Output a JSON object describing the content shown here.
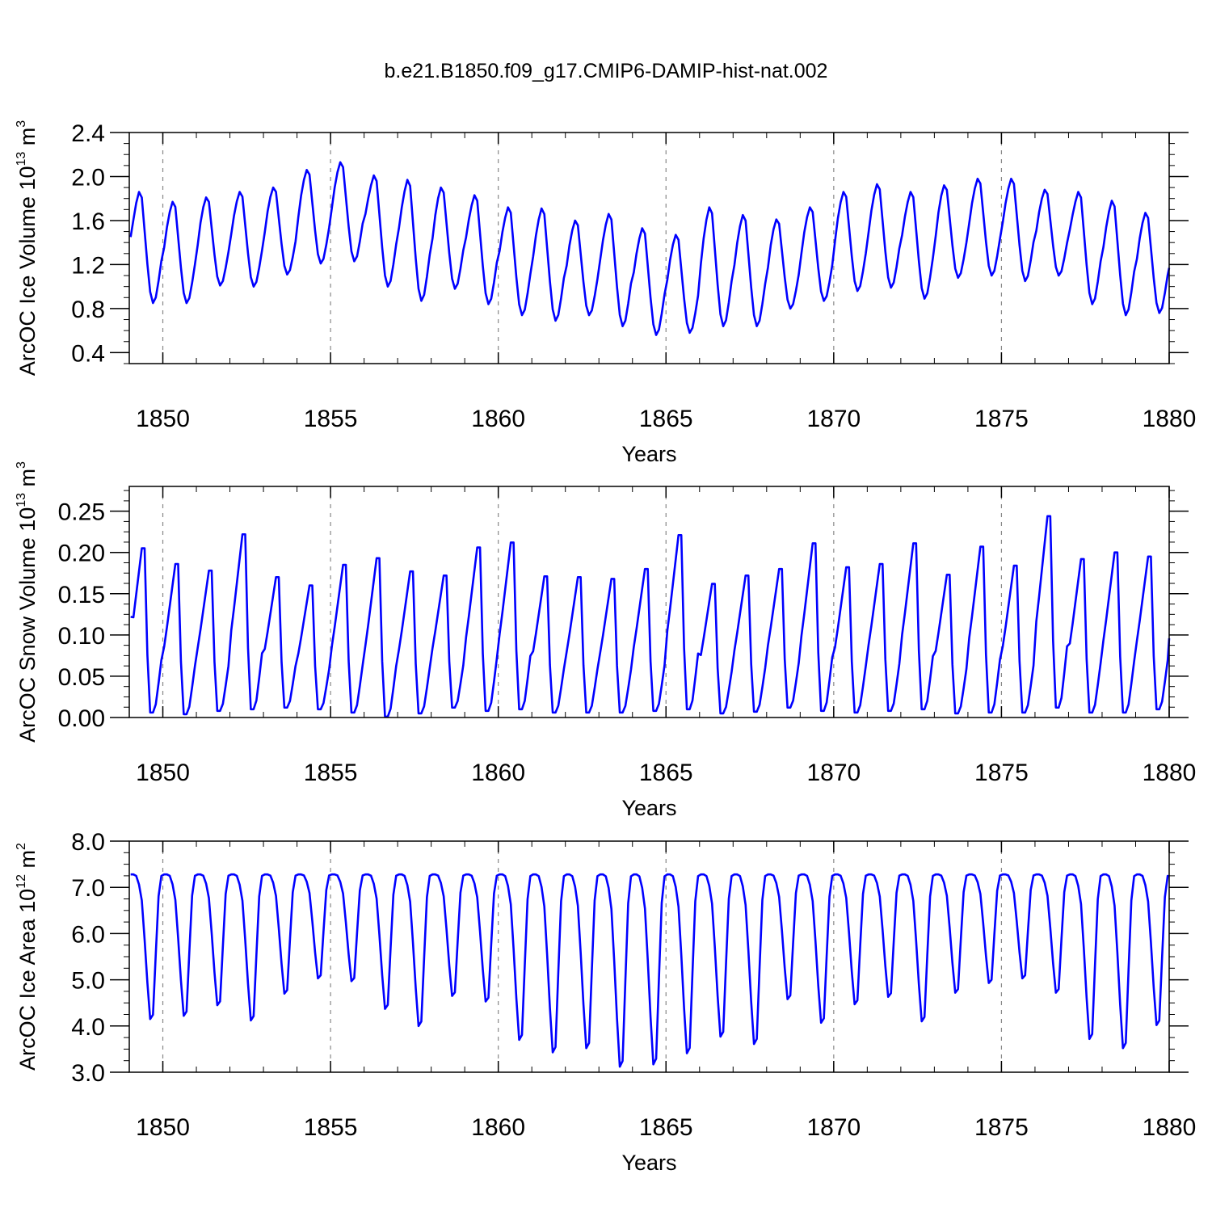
{
  "title": "b.e21.B1850.f09_g17.CMIP6-DAMIP-hist-nat.002",
  "colors": {
    "series": "#0000ff",
    "axes": "#000000",
    "grid": "#888888",
    "background": "#ffffff"
  },
  "chart_data": [
    {
      "type": "line",
      "ylabel": {
        "prefix": "ArcOC Ice Volume 10",
        "exp1": "13",
        "mid": " m",
        "exp2": "3"
      },
      "xlabel": "Years",
      "xlim": [
        1849.0,
        1880.0
      ],
      "ylim": [
        0.3,
        2.4
      ],
      "xticks": [
        1850,
        1855,
        1860,
        1865,
        1870,
        1875,
        1880
      ],
      "xtick_labels": [
        "1850",
        "1855",
        "1860",
        "1865",
        "1870",
        "1875",
        "1880"
      ],
      "yticks": [
        0.4,
        0.8,
        1.2,
        1.6,
        2.0,
        2.4
      ],
      "ytick_labels": [
        "0.4",
        "0.8",
        "1.2",
        "1.6",
        "2.0",
        "2.4"
      ],
      "grid": "vertical dashed at major x ticks",
      "series": [
        {
          "start": 1849.04,
          "step": 0.08333,
          "pattern": "monthly seasonal cycle, max ~Apr-May, min ~Sep-Oct",
          "yearly_max": [
            1.86,
            1.77,
            1.81,
            1.86,
            1.9,
            2.06,
            2.13,
            2.01,
            1.97,
            1.9,
            1.83,
            1.72,
            1.71,
            1.6,
            1.66,
            1.53,
            1.47,
            1.72,
            1.65,
            1.61,
            1.72,
            1.86,
            1.93,
            1.86,
            1.92,
            1.98,
            1.98,
            1.88,
            1.86,
            1.78,
            1.67
          ],
          "yearly_min": [
            0.85,
            0.85,
            1.01,
            1.0,
            1.11,
            1.21,
            1.23,
            1.0,
            0.87,
            0.98,
            0.84,
            0.74,
            0.69,
            0.74,
            0.64,
            0.56,
            0.58,
            0.64,
            0.64,
            0.8,
            0.87,
            0.96,
            0.99,
            0.89,
            1.08,
            1.1,
            1.05,
            1.1,
            0.84,
            0.74,
            0.76
          ],
          "end_value": 1.17
        }
      ]
    },
    {
      "type": "line",
      "ylabel": {
        "prefix": "ArcOC Snow Volume 10",
        "exp1": "13",
        "mid": " m",
        "exp2": "3"
      },
      "xlabel": "Years",
      "xlim": [
        1849.0,
        1880.0
      ],
      "ylim": [
        0.0,
        0.28
      ],
      "xticks": [
        1850,
        1855,
        1860,
        1865,
        1870,
        1875,
        1880
      ],
      "xtick_labels": [
        "1850",
        "1855",
        "1860",
        "1865",
        "1870",
        "1875",
        "1880"
      ],
      "yticks": [
        0.0,
        0.05,
        0.1,
        0.15,
        0.2,
        0.25
      ],
      "ytick_labels": [
        "0.00",
        "0.05",
        "0.10",
        "0.15",
        "0.20",
        "0.25"
      ],
      "grid": "vertical dashed at major x ticks",
      "series": [
        {
          "start": 1849.04,
          "step": 0.08333,
          "pattern": "monthly sawtooth, slow rise to peak ~May, sharp drop to ~0 by Aug",
          "yearly_max": [
            0.205,
            0.186,
            0.178,
            0.222,
            0.17,
            0.16,
            0.185,
            0.193,
            0.177,
            0.172,
            0.206,
            0.212,
            0.171,
            0.17,
            0.168,
            0.18,
            0.221,
            0.162,
            0.172,
            0.18,
            0.211,
            0.182,
            0.186,
            0.211,
            0.173,
            0.207,
            0.184,
            0.244,
            0.192,
            0.2,
            0.195
          ],
          "yearly_min": [
            0.006,
            0.004,
            0.008,
            0.01,
            0.012,
            0.01,
            0.006,
            0.001,
            0.005,
            0.012,
            0.008,
            0.01,
            0.006,
            0.006,
            0.006,
            0.008,
            0.01,
            0.005,
            0.007,
            0.012,
            0.008,
            0.006,
            0.008,
            0.01,
            0.005,
            0.006,
            0.006,
            0.012,
            0.006,
            0.006,
            0.01
          ],
          "start_value": 0.122,
          "end_value": 0.096
        }
      ]
    },
    {
      "type": "line",
      "ylabel": {
        "prefix": "ArcOC Ice Area 10",
        "exp1": "12",
        "mid": " m",
        "exp2": "2"
      },
      "xlabel": "Years",
      "xlim": [
        1849.0,
        1880.0
      ],
      "ylim": [
        3.0,
        8.0
      ],
      "xticks": [
        1850,
        1855,
        1860,
        1865,
        1870,
        1875,
        1880
      ],
      "xtick_labels": [
        "1850",
        "1855",
        "1860",
        "1865",
        "1870",
        "1875",
        "1880"
      ],
      "yticks": [
        3.0,
        4.0,
        5.0,
        6.0,
        7.0,
        8.0
      ],
      "ytick_labels": [
        "3.0",
        "4.0",
        "5.0",
        "6.0",
        "7.0",
        "8.0"
      ],
      "grid": "vertical dashed at major x ticks",
      "series": [
        {
          "start": 1849.04,
          "step": 0.08333,
          "pattern": "monthly; plateau ~7.28 most of year, sharp dip to minimum ~Sep",
          "yearly_max": [
            7.28,
            7.28,
            7.28,
            7.28,
            7.28,
            7.28,
            7.28,
            7.28,
            7.28,
            7.28,
            7.28,
            7.28,
            7.28,
            7.28,
            7.28,
            7.28,
            7.28,
            7.28,
            7.28,
            7.28,
            7.28,
            7.28,
            7.28,
            7.28,
            7.28,
            7.28,
            7.28,
            7.28,
            7.28,
            7.28,
            7.28
          ],
          "yearly_min": [
            4.15,
            4.22,
            4.45,
            4.12,
            4.7,
            5.03,
            4.97,
            4.37,
            4.0,
            4.65,
            4.53,
            3.7,
            3.43,
            3.52,
            3.12,
            3.17,
            3.41,
            3.77,
            3.61,
            4.58,
            4.07,
            4.47,
            4.63,
            4.1,
            4.72,
            4.93,
            5.03,
            4.72,
            3.72,
            3.52,
            4.02
          ],
          "end_value": 7.24
        }
      ]
    }
  ]
}
